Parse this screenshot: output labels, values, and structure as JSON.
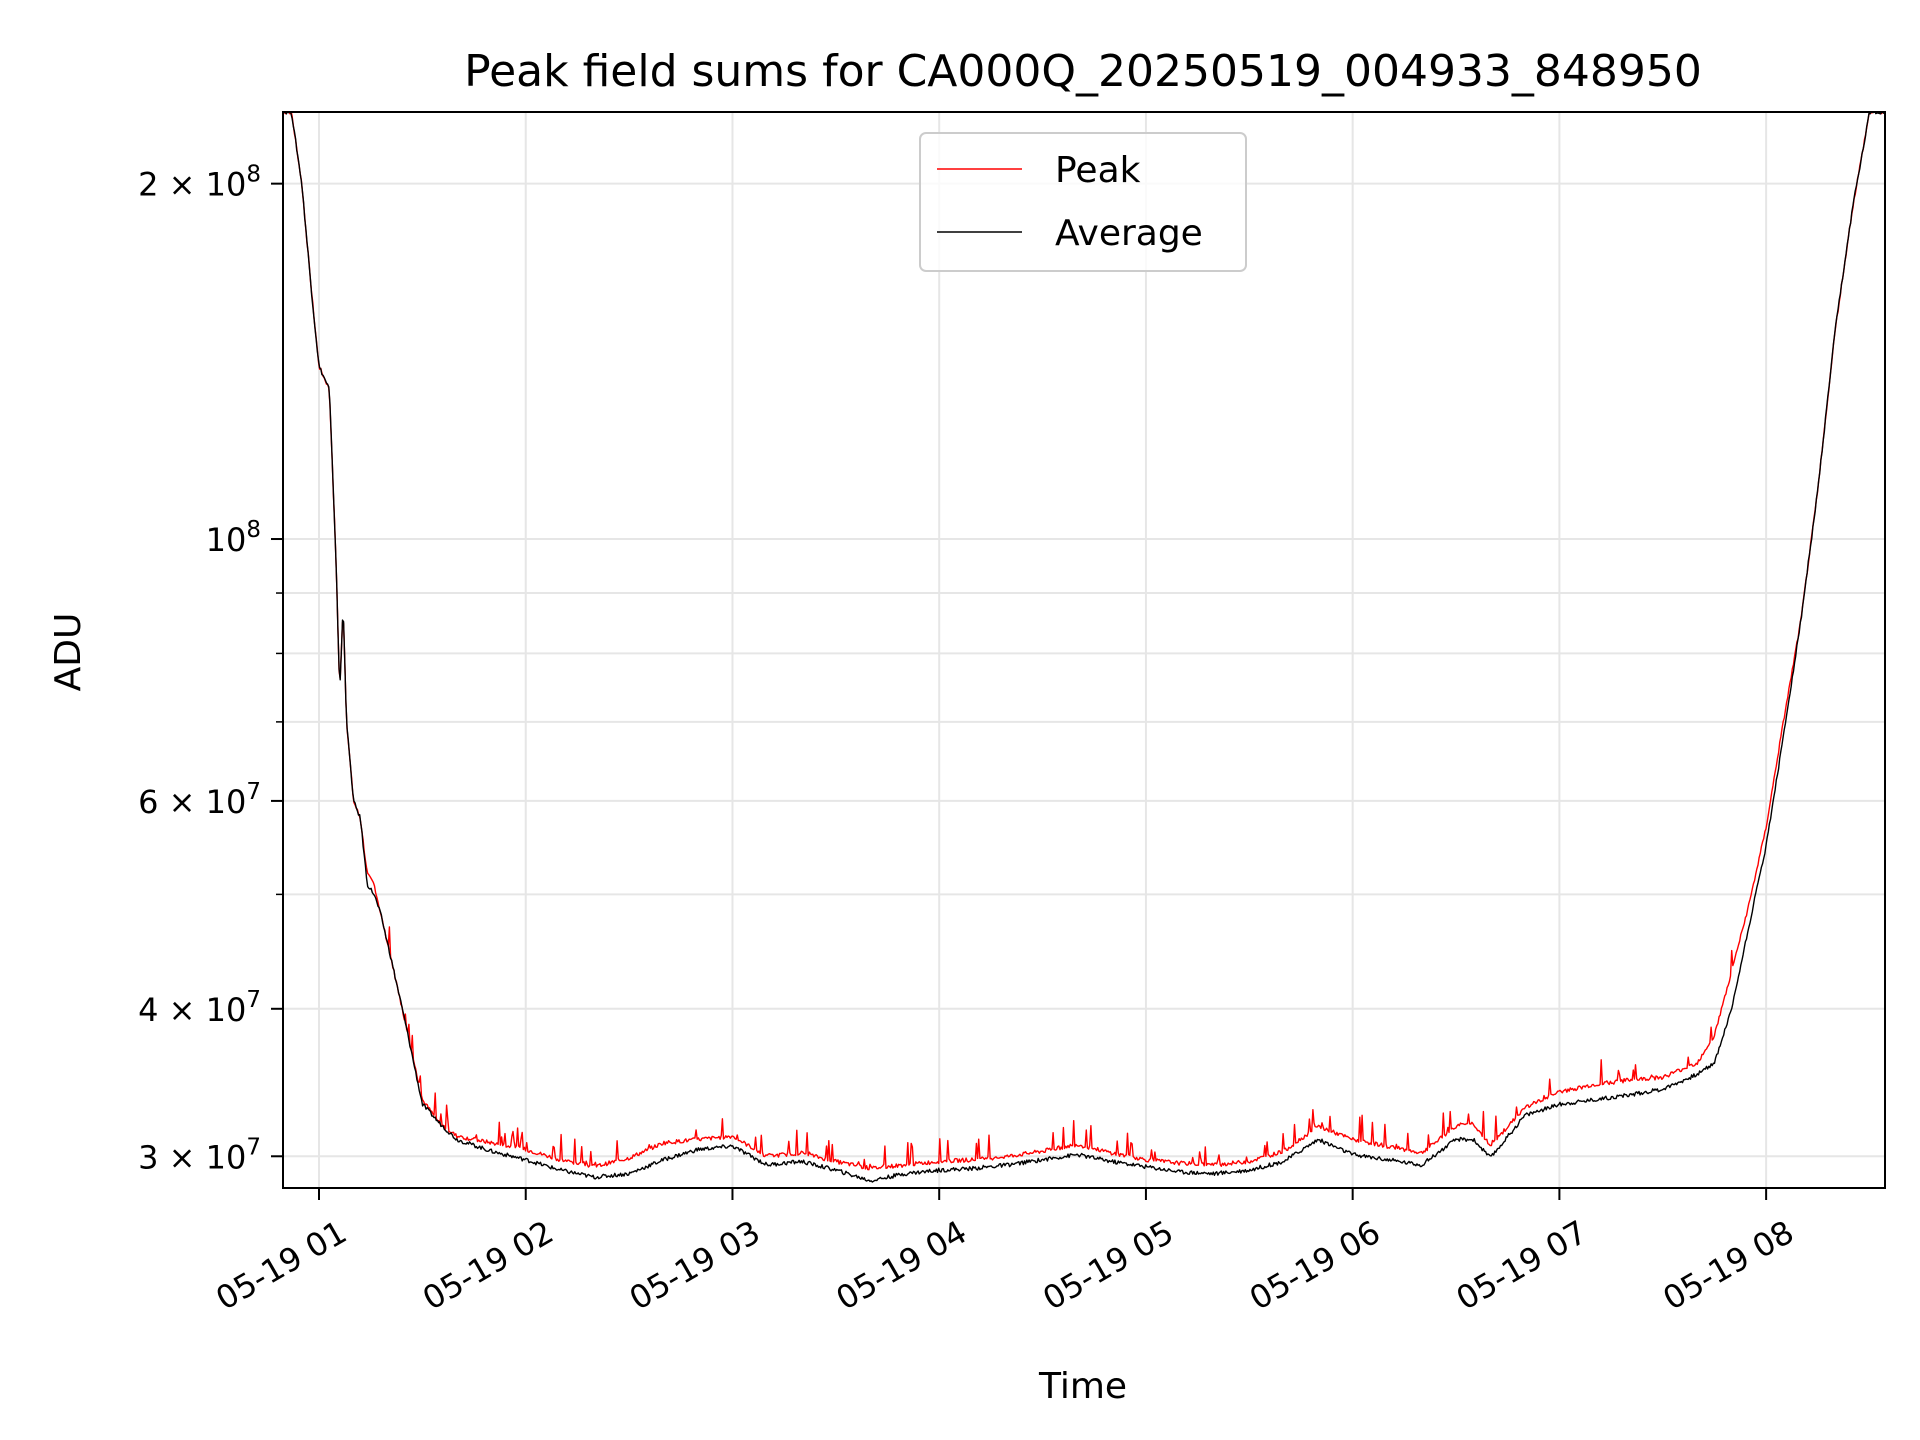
{
  "chart_data": {
    "type": "line",
    "title": "Peak field sums for CA000Q_20250519_004933_848950",
    "xlabel": "Time",
    "ylabel": "ADU",
    "yscale": "log",
    "ylim": [
      28200000,
      230000000
    ],
    "xlim": [
      "2025-05-19 00:49:33",
      "2025-05-19 08:34:30"
    ],
    "grid": true,
    "legend_position": "top-center",
    "x_ticks": [
      {
        "t": "2025-05-19 01:00",
        "label": "05-19 01"
      },
      {
        "t": "2025-05-19 02:00",
        "label": "05-19 02"
      },
      {
        "t": "2025-05-19 03:00",
        "label": "05-19 03"
      },
      {
        "t": "2025-05-19 04:00",
        "label": "05-19 04"
      },
      {
        "t": "2025-05-19 05:00",
        "label": "05-19 05"
      },
      {
        "t": "2025-05-19 06:00",
        "label": "05-19 06"
      },
      {
        "t": "2025-05-19 07:00",
        "label": "05-19 07"
      },
      {
        "t": "2025-05-19 08:00",
        "label": "05-19 08"
      }
    ],
    "y_ticks": [
      {
        "v": 30000000,
        "mant": "3",
        "exp": "7"
      },
      {
        "v": 40000000,
        "mant": "4",
        "exp": "7"
      },
      {
        "v": 60000000,
        "mant": "6",
        "exp": "7"
      },
      {
        "v": 100000000,
        "mant": "",
        "exp": "8"
      },
      {
        "v": 200000000,
        "mant": "2",
        "exp": "8"
      }
    ],
    "y_minor_ticks": [
      50000000,
      70000000,
      80000000,
      90000000
    ],
    "series": [
      {
        "name": "Peak",
        "color": "#ff0000",
        "spikes": true,
        "x": [
          "2025-05-19 00:49:33",
          "2025-05-19 00:52",
          "2025-05-19 00:55",
          "2025-05-19 00:58",
          "2025-05-19 01:00",
          "2025-05-19 01:03",
          "2025-05-19 01:05",
          "2025-05-19 01:06",
          "2025-05-19 01:07",
          "2025-05-19 01:08",
          "2025-05-19 01:10",
          "2025-05-19 01:12",
          "2025-05-19 01:14",
          "2025-05-19 01:16",
          "2025-05-19 01:18",
          "2025-05-19 01:21",
          "2025-05-19 01:25",
          "2025-05-19 01:30",
          "2025-05-19 01:35",
          "2025-05-19 01:40",
          "2025-05-19 01:50",
          "2025-05-19 02:00",
          "2025-05-19 02:10",
          "2025-05-19 02:20",
          "2025-05-19 02:30",
          "2025-05-19 02:40",
          "2025-05-19 02:50",
          "2025-05-19 03:00",
          "2025-05-19 03:10",
          "2025-05-19 03:20",
          "2025-05-19 03:30",
          "2025-05-19 03:40",
          "2025-05-19 03:50",
          "2025-05-19 04:00",
          "2025-05-19 04:10",
          "2025-05-19 04:20",
          "2025-05-19 04:30",
          "2025-05-19 04:40",
          "2025-05-19 04:50",
          "2025-05-19 05:00",
          "2025-05-19 05:10",
          "2025-05-19 05:20",
          "2025-05-19 05:30",
          "2025-05-19 05:40",
          "2025-05-19 05:50",
          "2025-05-19 06:00",
          "2025-05-19 06:10",
          "2025-05-19 06:20",
          "2025-05-19 06:30",
          "2025-05-19 06:35",
          "2025-05-19 06:40",
          "2025-05-19 06:50",
          "2025-05-19 07:00",
          "2025-05-19 07:10",
          "2025-05-19 07:20",
          "2025-05-19 07:30",
          "2025-05-19 07:40",
          "2025-05-19 07:45",
          "2025-05-19 07:50",
          "2025-05-19 07:55",
          "2025-05-19 08:00",
          "2025-05-19 08:05",
          "2025-05-19 08:10",
          "2025-05-19 08:15",
          "2025-05-19 08:20",
          "2025-05-19 08:25",
          "2025-05-19 08:30",
          "2025-05-19 08:34:30"
        ],
        "values": [
          230000000,
          230000000,
          200000000,
          160000000,
          140000000,
          134000000,
          95000000,
          74000000,
          88000000,
          70000000,
          60000000,
          58000000,
          52000000,
          51000000,
          48000000,
          44000000,
          39000000,
          33500000,
          32000000,
          31200000,
          30800000,
          30400000,
          29800000,
          29400000,
          29900000,
          30800000,
          31000000,
          31200000,
          30000000,
          30200000,
          29700000,
          29300000,
          29500000,
          29700000,
          29800000,
          30000000,
          30300000,
          30700000,
          30200000,
          29800000,
          29600000,
          29500000,
          29700000,
          30300000,
          31800000,
          31000000,
          30600000,
          30200000,
          31800000,
          32000000,
          30600000,
          33000000,
          34000000,
          34500000,
          34800000,
          35000000,
          36000000,
          38000000,
          43000000,
          49000000,
          57000000,
          70000000,
          85000000,
          110000000,
          150000000,
          190000000,
          230000000,
          230000000
        ]
      },
      {
        "name": "Average",
        "color": "#000000",
        "x": [
          "2025-05-19 00:49:33",
          "2025-05-19 00:52",
          "2025-05-19 00:55",
          "2025-05-19 00:58",
          "2025-05-19 01:00",
          "2025-05-19 01:03",
          "2025-05-19 01:05",
          "2025-05-19 01:06",
          "2025-05-19 01:07",
          "2025-05-19 01:08",
          "2025-05-19 01:10",
          "2025-05-19 01:12",
          "2025-05-19 01:14",
          "2025-05-19 01:16",
          "2025-05-19 01:18",
          "2025-05-19 01:21",
          "2025-05-19 01:25",
          "2025-05-19 01:30",
          "2025-05-19 01:35",
          "2025-05-19 01:40",
          "2025-05-19 01:50",
          "2025-05-19 02:00",
          "2025-05-19 02:10",
          "2025-05-19 02:20",
          "2025-05-19 02:30",
          "2025-05-19 02:40",
          "2025-05-19 02:50",
          "2025-05-19 03:00",
          "2025-05-19 03:10",
          "2025-05-19 03:20",
          "2025-05-19 03:30",
          "2025-05-19 03:40",
          "2025-05-19 03:50",
          "2025-05-19 04:00",
          "2025-05-19 04:10",
          "2025-05-19 04:20",
          "2025-05-19 04:30",
          "2025-05-19 04:40",
          "2025-05-19 04:50",
          "2025-05-19 05:00",
          "2025-05-19 05:10",
          "2025-05-19 05:20",
          "2025-05-19 05:30",
          "2025-05-19 05:40",
          "2025-05-19 05:50",
          "2025-05-19 06:00",
          "2025-05-19 06:10",
          "2025-05-19 06:20",
          "2025-05-19 06:30",
          "2025-05-19 06:35",
          "2025-05-19 06:40",
          "2025-05-19 06:50",
          "2025-05-19 07:00",
          "2025-05-19 07:10",
          "2025-05-19 07:20",
          "2025-05-19 07:30",
          "2025-05-19 07:40",
          "2025-05-19 07:45",
          "2025-05-19 07:50",
          "2025-05-19 07:55",
          "2025-05-19 08:00",
          "2025-05-19 08:05",
          "2025-05-19 08:10",
          "2025-05-19 08:15",
          "2025-05-19 08:20",
          "2025-05-19 08:25",
          "2025-05-19 08:30",
          "2025-05-19 08:34:30"
        ],
        "values": [
          230000000,
          230000000,
          200000000,
          160000000,
          140000000,
          134000000,
          95000000,
          74000000,
          88000000,
          70000000,
          60000000,
          58000000,
          51000000,
          50000000,
          48000000,
          44000000,
          39000000,
          33200000,
          32000000,
          31000000,
          30300000,
          29800000,
          29200000,
          28800000,
          29000000,
          29800000,
          30400000,
          30600000,
          29500000,
          29700000,
          29200000,
          28600000,
          29000000,
          29200000,
          29300000,
          29500000,
          29800000,
          30100000,
          29700000,
          29400000,
          29100000,
          29000000,
          29200000,
          29700000,
          31000000,
          30100000,
          29800000,
          29500000,
          31000000,
          31000000,
          29900000,
          32500000,
          33200000,
          33500000,
          33800000,
          34200000,
          35200000,
          36000000,
          40000000,
          47000000,
          55000000,
          68000000,
          85000000,
          110000000,
          150000000,
          190000000,
          230000000,
          230000000
        ]
      }
    ]
  }
}
